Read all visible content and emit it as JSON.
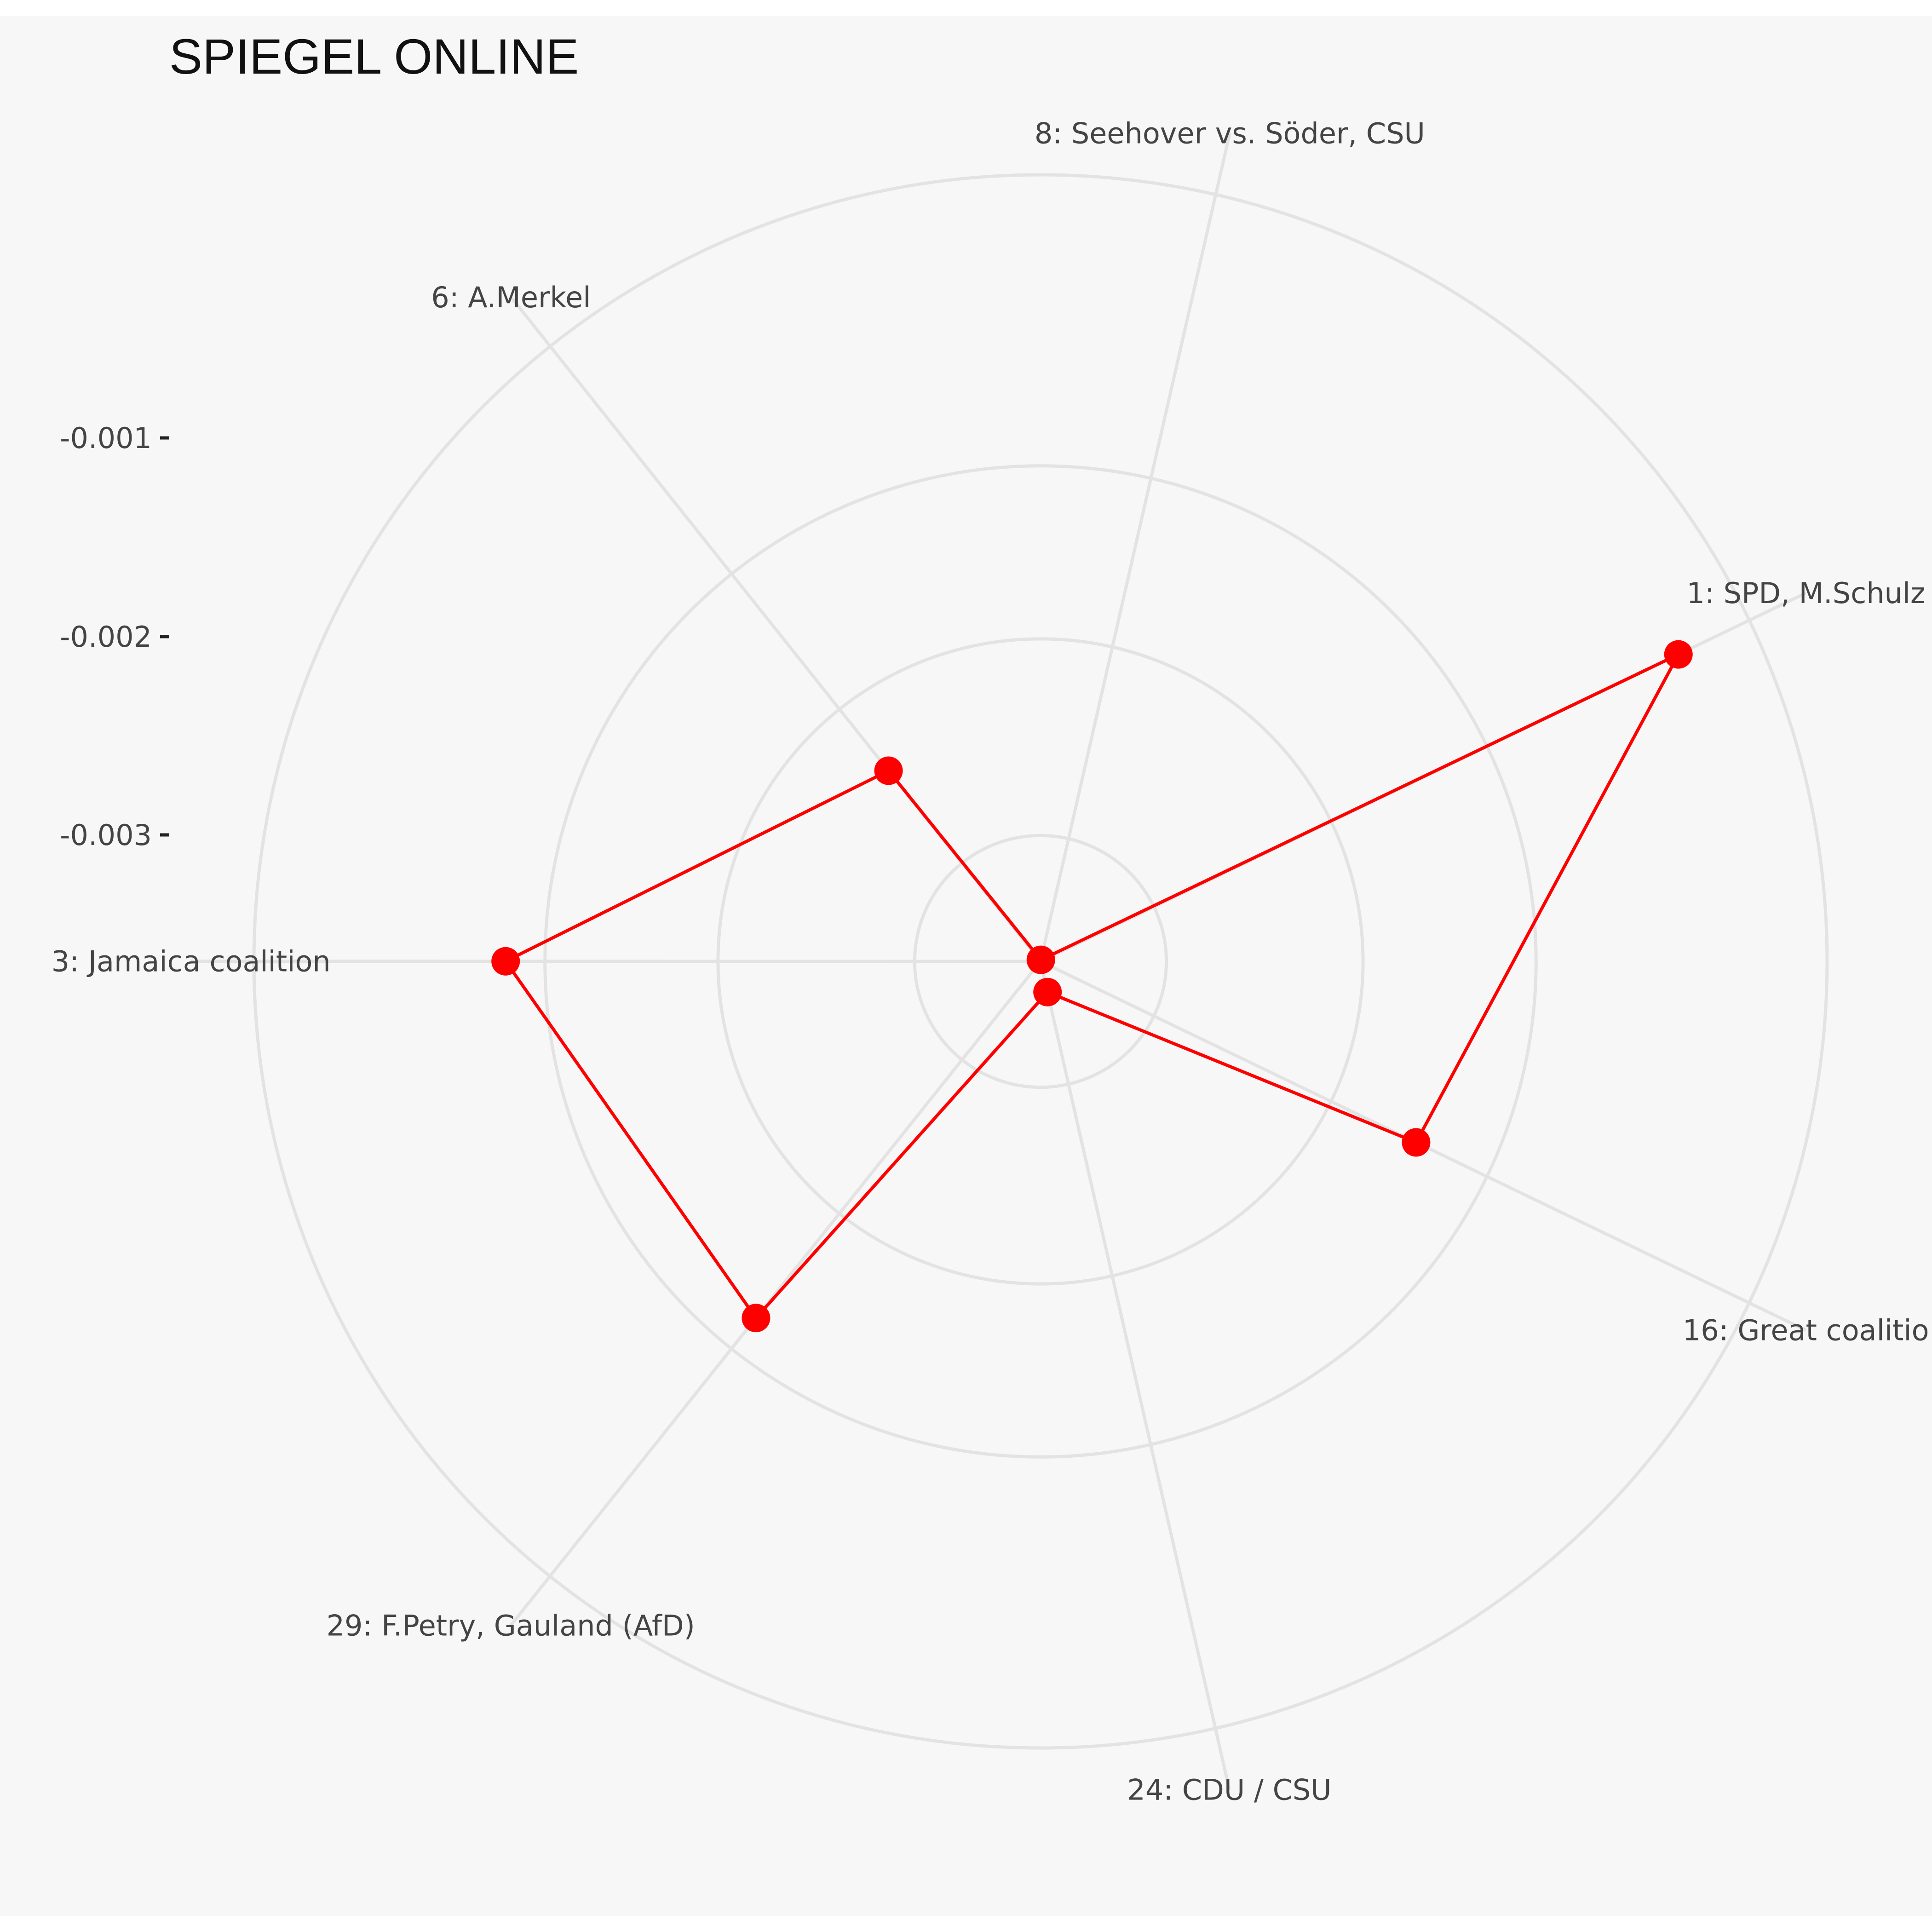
{
  "chart_data": {
    "type": "radar",
    "title": "SPIEGEL ONLINE",
    "categories": [
      "1: SPD, M.Schulz",
      "16: Great coalitio",
      "24: CDU / CSU",
      "29: F.Petry, Gauland (AfD)",
      "3: Jamaica coalition",
      "6: A.Merkel",
      "8: Seehover vs. Söder, CSU"
    ],
    "radial_ticks": [
      "-0.001",
      "-0.002",
      "-0.003"
    ],
    "grid": true,
    "legend": "none",
    "series": [
      {
        "color": "#ff0000",
        "values_r_fraction": [
          0.9,
          0.53,
          0.04,
          0.58,
          0.68,
          0.31,
          0.002
        ]
      }
    ]
  }
}
